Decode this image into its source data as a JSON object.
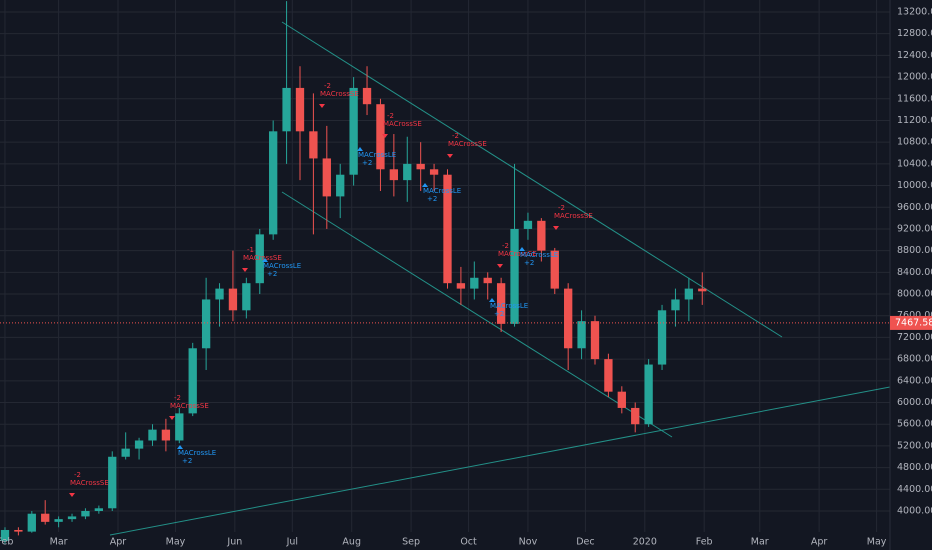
{
  "chart_data": {
    "type": "candlestick",
    "up_color": "#26a69a",
    "down_color": "#ef5350",
    "grid": true,
    "xlim": [
      -2.6,
      462
    ],
    "xticks": [
      {
        "value": 0,
        "label": "Feb"
      },
      {
        "value": 28,
        "label": "Mar"
      },
      {
        "value": 59,
        "label": "Apr"
      },
      {
        "value": 89,
        "label": "May"
      },
      {
        "value": 120,
        "label": "Jun"
      },
      {
        "value": 150,
        "label": "Jul"
      },
      {
        "value": 181,
        "label": "Aug"
      },
      {
        "value": 212,
        "label": "Sep"
      },
      {
        "value": 242,
        "label": "Oct"
      },
      {
        "value": 273,
        "label": "Nov"
      },
      {
        "value": 303,
        "label": "Dec"
      },
      {
        "value": 334,
        "label": "2020"
      },
      {
        "value": 365,
        "label": "Feb"
      },
      {
        "value": 394,
        "label": "Mar"
      },
      {
        "value": 425,
        "label": "Apr"
      },
      {
        "value": 455,
        "label": "May"
      }
    ],
    "ylim": [
      3281,
      13421
    ],
    "yticks": [
      {
        "value": 4000,
        "label": "4000.00"
      },
      {
        "value": 4400,
        "label": "4400.00"
      },
      {
        "value": 4800,
        "label": "4800.00"
      },
      {
        "value": 5200,
        "label": "5200.00"
      },
      {
        "value": 5600,
        "label": "5600.00"
      },
      {
        "value": 6000,
        "label": "6000.00"
      },
      {
        "value": 6400,
        "label": "6400.00"
      },
      {
        "value": 6800,
        "label": "6800.00"
      },
      {
        "value": 7200,
        "label": "7200.00"
      },
      {
        "value": 7600,
        "label": "7600.00"
      },
      {
        "value": 8000,
        "label": "8000.00"
      },
      {
        "value": 8400,
        "label": "8400.00"
      },
      {
        "value": 8800,
        "label": "8800.00"
      },
      {
        "value": 9200,
        "label": "9200.00"
      },
      {
        "value": 9600,
        "label": "9600.00"
      },
      {
        "value": 10000,
        "label": "10000.00"
      },
      {
        "value": 10400,
        "label": "10400.00"
      },
      {
        "value": 10800,
        "label": "10800.00"
      },
      {
        "value": 11200,
        "label": "11200.00"
      },
      {
        "value": 11600,
        "label": "11600.00"
      },
      {
        "value": 12000,
        "label": "12000.00"
      },
      {
        "value": 12400,
        "label": "12400.00"
      },
      {
        "value": 12800,
        "label": "12800.00"
      },
      {
        "value": 13200,
        "label": "13200.00"
      }
    ],
    "last_price": 7467.58,
    "x": [
      0,
      7,
      14,
      21,
      28,
      35,
      42,
      49,
      56,
      63,
      70,
      77,
      84,
      91,
      98,
      105,
      112,
      119,
      126,
      133,
      140,
      147,
      154,
      161,
      168,
      175,
      182,
      189,
      196,
      203,
      210,
      217,
      224,
      231,
      238,
      245,
      252,
      259,
      266,
      273,
      280,
      287,
      294,
      301,
      308,
      315,
      322,
      329,
      336,
      343,
      350,
      357,
      364
    ],
    "open": [
      3450,
      3650,
      3620,
      3950,
      3800,
      3850,
      3900,
      4000,
      4050,
      5000,
      5150,
      5300,
      5500,
      5300,
      5800,
      7000,
      7900,
      8100,
      7700,
      8200,
      9100,
      11000,
      11800,
      11000,
      10500,
      9800,
      10200,
      11800,
      11500,
      10300,
      10100,
      10400,
      10300,
      10200,
      8200,
      8100,
      8300,
      8200,
      7450,
      9200,
      9350,
      8800,
      8100,
      7000,
      7500,
      6800,
      6200,
      5900,
      5600,
      6700,
      7700,
      7900,
      8100
    ],
    "high": [
      3700,
      3700,
      4000,
      4200,
      3900,
      3950,
      4050,
      4100,
      5100,
      5450,
      5350,
      5600,
      5700,
      5900,
      7100,
      8300,
      8200,
      8800,
      8300,
      9200,
      11200,
      13400,
      12200,
      11700,
      11100,
      10400,
      12000,
      12200,
      11600,
      10950,
      10900,
      10800,
      10400,
      10300,
      8500,
      8600,
      8400,
      8300,
      10400,
      9500,
      9400,
      8850,
      8200,
      7700,
      7600,
      6900,
      6300,
      6000,
      6800,
      7800,
      8100,
      8300,
      8400
    ],
    "low": [
      3400,
      3550,
      3600,
      3750,
      3700,
      3800,
      3850,
      3950,
      4000,
      4950,
      4950,
      5200,
      5100,
      5250,
      5750,
      6600,
      7400,
      7500,
      7550,
      8000,
      9000,
      10400,
      10100,
      9100,
      9200,
      9400,
      10000,
      11300,
      9900,
      9800,
      9700,
      9900,
      9900,
      8100,
      7800,
      7900,
      7900,
      7300,
      7400,
      9000,
      8600,
      8000,
      6600,
      6800,
      6700,
      6100,
      5800,
      5450,
      5550,
      6600,
      7400,
      7500,
      7800
    ],
    "close": [
      3650,
      3620,
      3950,
      3800,
      3850,
      3900,
      4000,
      4050,
      5000,
      5150,
      5300,
      5500,
      5300,
      5800,
      7000,
      7900,
      8100,
      7700,
      8200,
      9100,
      11000,
      11800,
      11000,
      10500,
      9800,
      10200,
      11800,
      11500,
      10300,
      10100,
      10400,
      10300,
      10200,
      8200,
      8100,
      8300,
      8200,
      7450,
      9200,
      9350,
      8800,
      8100,
      7000,
      7500,
      6800,
      6200,
      5900,
      5600,
      6700,
      7700,
      7900,
      8100,
      8050
    ],
    "signals": [
      {
        "label": "MACrossSE",
        "qty": "-2"
      },
      {
        "label": "MACrossSE",
        "qty": "-2"
      },
      {
        "label": "MACrossLE",
        "qty": "+2"
      },
      {
        "label": "MACrossSE",
        "qty": "-1"
      },
      {
        "label": "MACrossLE",
        "qty": "+2"
      },
      {
        "label": "MACrossSE",
        "qty": "-2"
      },
      {
        "label": "MACrossLE",
        "qty": "+2"
      },
      {
        "label": "MACrossSE",
        "qty": "-2"
      },
      {
        "label": "MACrossLE",
        "qty": "+2"
      },
      {
        "label": "MACrossSE",
        "qty": "-2"
      },
      {
        "label": "MACrossSE",
        "qty": "-2"
      },
      {
        "label": "MACrossLE",
        "qty": "+2"
      },
      {
        "label": "MACrossLE",
        "qty": "+2"
      },
      {
        "label": "MACrossSE",
        "qty": "-2"
      }
    ]
  }
}
